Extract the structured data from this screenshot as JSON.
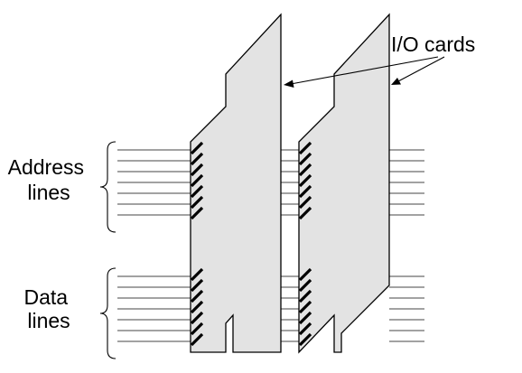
{
  "labels": {
    "io_cards": "I/O cards",
    "address_line1": "Address",
    "address_line2": "lines",
    "data_line1": "Data",
    "data_line2": "lines"
  },
  "address_bus": {
    "line_count": 7
  },
  "data_bus": {
    "line_count": 7
  },
  "cards": {
    "count": 2,
    "contacts_per_group": 7
  },
  "colors": {
    "card_fill": "#e3e3e3",
    "line": "#444444",
    "contact": "#000000"
  }
}
